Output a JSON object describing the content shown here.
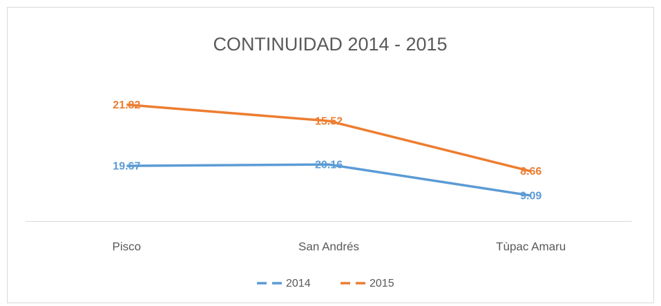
{
  "chart_data": {
    "type": "line",
    "stacked": true,
    "title": "CONTINUIDAD 2014 - 2015",
    "categories": [
      "Pisco",
      "San Andrés",
      "Tùpac Amaru"
    ],
    "series": [
      {
        "name": "2014",
        "color": "#5b9bd5",
        "values": [
          19.67,
          20.16,
          9.09
        ]
      },
      {
        "name": "2015",
        "color": "#ed7d31",
        "values": [
          21.82,
          15.52,
          8.66
        ]
      }
    ],
    "ylim": [
      0,
      50
    ]
  }
}
